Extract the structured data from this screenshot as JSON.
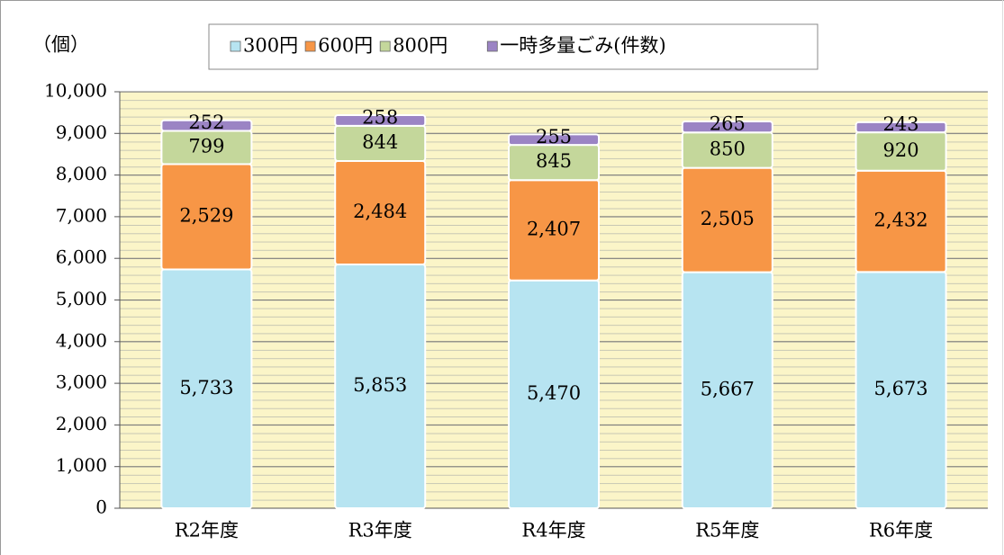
{
  "chart_data": {
    "type": "bar",
    "stacked": true,
    "y_axis_label": "（個）",
    "categories": [
      "R2年度",
      "R3年度",
      "R4年度",
      "R5年度",
      "R6年度"
    ],
    "series": [
      {
        "name": "300円",
        "color": "#b7e4f1",
        "values": [
          5733,
          5853,
          5470,
          5667,
          5673
        ],
        "value_labels": [
          "5,733",
          "5,853",
          "5,470",
          "5,667",
          "5,673"
        ]
      },
      {
        "name": "600円",
        "color": "#f79646",
        "values": [
          2529,
          2484,
          2407,
          2505,
          2432
        ],
        "value_labels": [
          "2,529",
          "2,484",
          "2,407",
          "2,505",
          "2,432"
        ]
      },
      {
        "name": "800円",
        "color": "#c4d79b",
        "values": [
          799,
          844,
          845,
          850,
          920
        ]
      },
      {
        "name": "一時多量ごみ(件数)",
        "color": "#9b84c4",
        "values": [
          252,
          258,
          255,
          265,
          243
        ]
      }
    ],
    "ylim": [
      0,
      10000
    ],
    "yticks": [
      0,
      {
        "value": 1000,
        "label": "1,000"
      },
      {
        "value": 2000,
        "label": "2,000"
      },
      {
        "value": 3000,
        "label": "3,000"
      },
      {
        "value": 4000,
        "label": "4,000"
      },
      {
        "value": 5000,
        "label": "5,000"
      },
      {
        "value": 6000,
        "label": "6,000"
      },
      {
        "value": 7000,
        "label": "7,000"
      },
      {
        "value": 8000,
        "label": "8,000"
      },
      {
        "value": 9000,
        "label": "9,000"
      },
      {
        "value": 10000,
        "label": "10,000"
      }
    ],
    "grid": true
  }
}
